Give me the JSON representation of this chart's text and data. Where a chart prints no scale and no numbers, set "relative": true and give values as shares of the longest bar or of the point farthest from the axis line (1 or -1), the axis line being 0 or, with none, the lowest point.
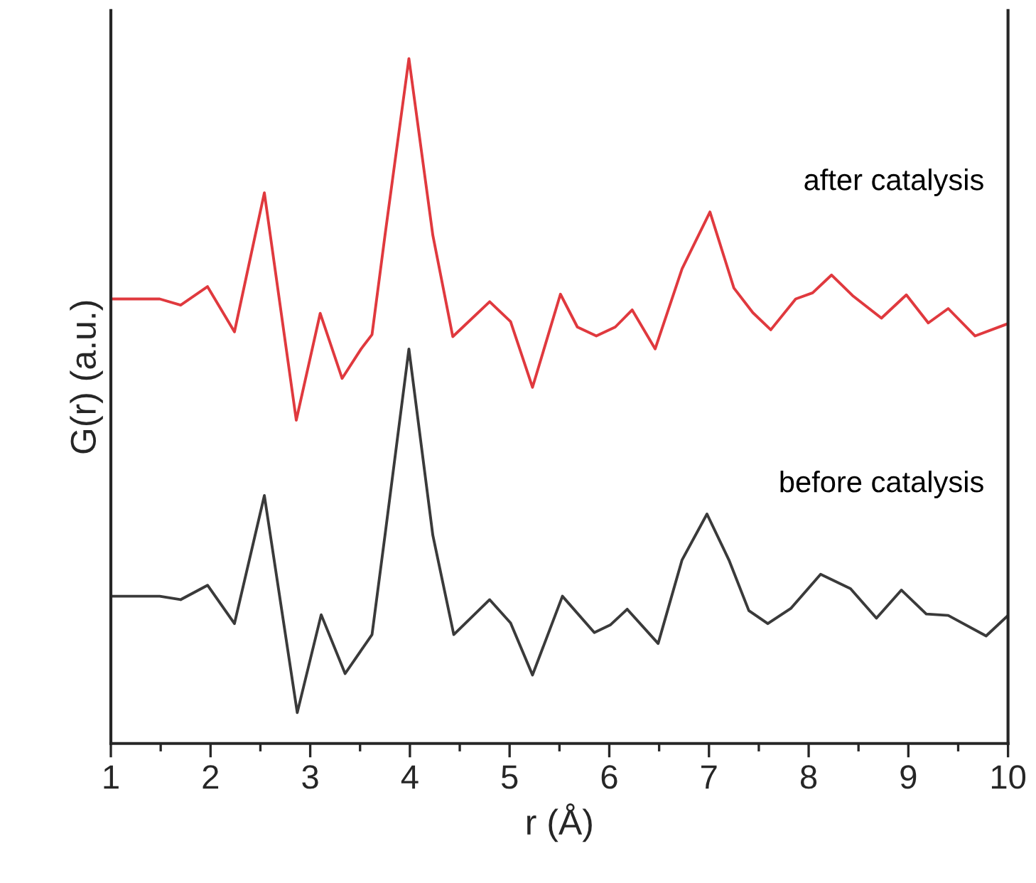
{
  "chart_data": {
    "type": "line",
    "relative": true,
    "xlabel": "r (Å)",
    "ylabel": "G(r) (a.u.)",
    "xlim": [
      1,
      10
    ],
    "xticks": [
      1,
      2,
      3,
      4,
      5,
      6,
      7,
      8,
      9,
      10
    ],
    "tick_labels": "x",
    "grid": false,
    "legend": false,
    "line_style": "solid",
    "marker": "none",
    "series": [
      {
        "name": "after catalysis",
        "color": "#e0393e",
        "x": [
          1.0,
          1.49,
          1.7,
          1.97,
          2.24,
          2.54,
          2.86,
          3.1,
          3.32,
          3.51,
          3.62,
          3.75,
          3.99,
          4.23,
          4.43,
          4.8,
          5.01,
          5.23,
          5.51,
          5.68,
          5.87,
          6.06,
          6.23,
          6.46,
          6.73,
          7.01,
          7.25,
          7.44,
          7.62,
          7.87,
          8.04,
          8.23,
          8.44,
          8.73,
          8.98,
          9.2,
          9.4,
          9.67,
          10.0
        ],
        "values": [
          0.649,
          0.649,
          0.64,
          0.667,
          0.601,
          0.804,
          0.472,
          0.628,
          0.533,
          0.576,
          0.597,
          0.742,
          1.0,
          0.742,
          0.594,
          0.645,
          0.616,
          0.52,
          0.656,
          0.608,
          0.595,
          0.608,
          0.633,
          0.576,
          0.693,
          0.776,
          0.665,
          0.629,
          0.604,
          0.649,
          0.658,
          0.684,
          0.654,
          0.621,
          0.655,
          0.614,
          0.635,
          0.595,
          0.613
        ]
      },
      {
        "name": "before catalysis",
        "color": "#3a3a3a",
        "x": [
          1.0,
          1.49,
          1.7,
          1.97,
          2.24,
          2.54,
          2.87,
          3.11,
          3.35,
          3.62,
          3.75,
          3.99,
          4.23,
          4.44,
          4.8,
          5.01,
          5.23,
          5.53,
          5.85,
          6.01,
          6.18,
          6.49,
          6.73,
          6.98,
          7.2,
          7.4,
          7.59,
          7.82,
          8.12,
          8.42,
          8.68,
          8.93,
          9.18,
          9.4,
          9.78,
          10.0
        ],
        "values": [
          0.215,
          0.215,
          0.21,
          0.231,
          0.175,
          0.362,
          0.045,
          0.188,
          0.102,
          0.159,
          0.304,
          0.576,
          0.304,
          0.159,
          0.21,
          0.176,
          0.1,
          0.215,
          0.162,
          0.173,
          0.196,
          0.146,
          0.268,
          0.335,
          0.268,
          0.194,
          0.175,
          0.197,
          0.247,
          0.226,
          0.183,
          0.224,
          0.189,
          0.187,
          0.157,
          0.187
        ]
      }
    ]
  }
}
